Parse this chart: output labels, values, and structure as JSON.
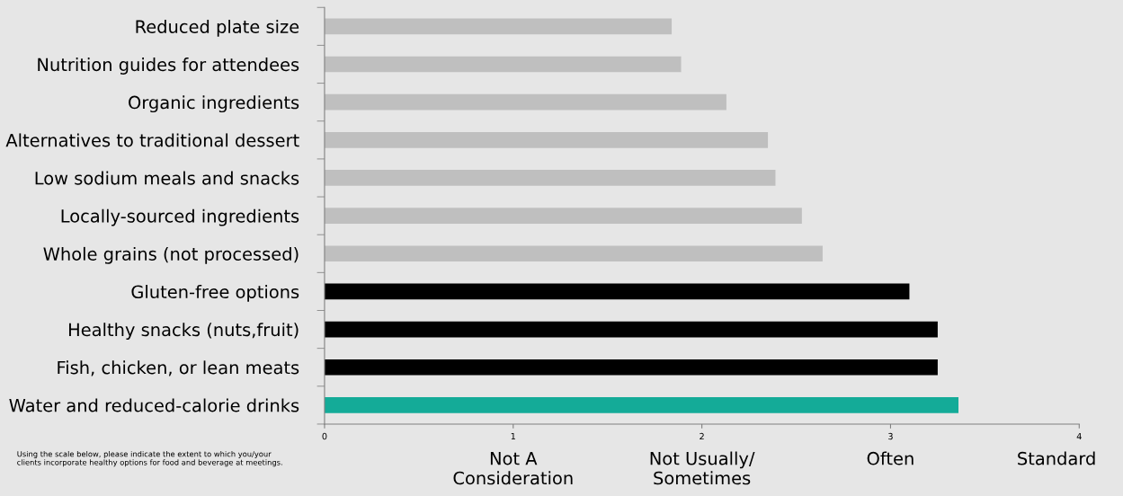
{
  "chart_data": {
    "type": "bar",
    "orientation": "horizontal",
    "categories": [
      "Reduced plate size",
      "Nutrition guides for attendees",
      "Organic ingredients",
      "Alternatives to traditional dessert",
      "Low sodium meals and snacks",
      "Locally-sourced ingredients",
      "Whole grains (not processed)",
      "Gluten-free options",
      "Healthy snacks (nuts,fruit)",
      "Fish, chicken, or lean meats",
      "Water and reduced-calorie drinks"
    ],
    "values": [
      1.84,
      1.89,
      2.13,
      2.35,
      2.39,
      2.53,
      2.64,
      3.1,
      3.25,
      3.25,
      3.36
    ],
    "colors": [
      "#bfbfbf",
      "#bfbfbf",
      "#bfbfbf",
      "#bfbfbf",
      "#bfbfbf",
      "#bfbfbf",
      "#bfbfbf",
      "#000000",
      "#000000",
      "#000000",
      "#14ab98"
    ],
    "xlim": [
      0,
      4
    ],
    "xticks": [
      0,
      1,
      2,
      3,
      4
    ],
    "grid": false,
    "legend": false,
    "annotations": [
      "Using the scale below, please indicate the extent to which you/your\nclients incorporate healthy options for food and beverage at meetings.",
      "Not A\nConsideration",
      "Not Usually/\nSometimes",
      "Often",
      "Standard"
    ]
  }
}
